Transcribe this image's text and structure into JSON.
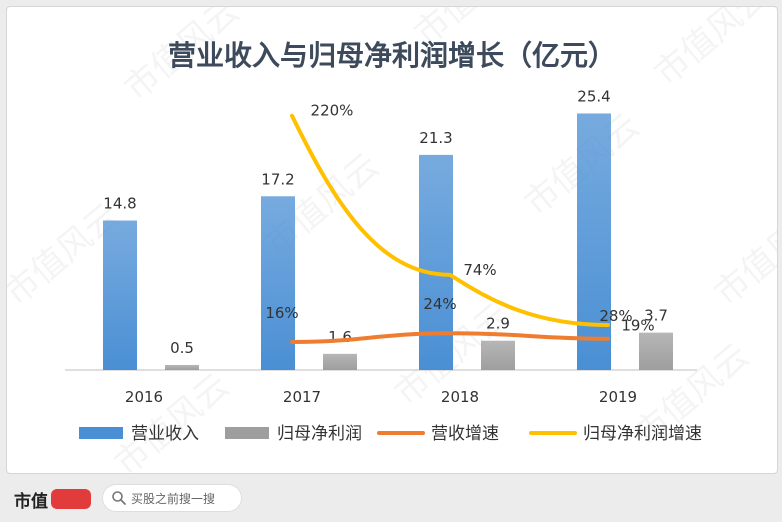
{
  "chart_data": {
    "type": "bar+line",
    "title": "营业收入与归母净利润增长（亿元）",
    "categories": [
      "2016",
      "2017",
      "2018",
      "2019"
    ],
    "bar_series": [
      {
        "name": "营业收入",
        "values": [
          14.8,
          17.2,
          21.3,
          25.4
        ],
        "labels": [
          "14.8",
          "17.2",
          "21.3",
          "25.4"
        ],
        "color": "#4a8fd4"
      },
      {
        "name": "归母净利润",
        "values": [
          0.5,
          1.6,
          2.9,
          3.7
        ],
        "labels": [
          "0.5",
          "1.6",
          "2.9",
          "3.7"
        ],
        "color": "#9e9e9e"
      }
    ],
    "line_series": [
      {
        "name": "营收增速",
        "values": [
          16,
          24,
          19
        ],
        "labels": [
          "16%",
          "24%",
          "19%"
        ],
        "color": "#ef7d2f"
      },
      {
        "name": "归母净利润增速",
        "values": [
          220,
          74,
          28
        ],
        "labels": [
          "220%",
          "74%",
          "28%"
        ],
        "color": "#ffc000"
      }
    ],
    "ylim": [
      0,
      30
    ],
    "grid": false,
    "legend_position": "bottom"
  },
  "watermark": "市值风云",
  "footer": {
    "brand": "市值",
    "search_placeholder": "买股之前搜一搜"
  }
}
